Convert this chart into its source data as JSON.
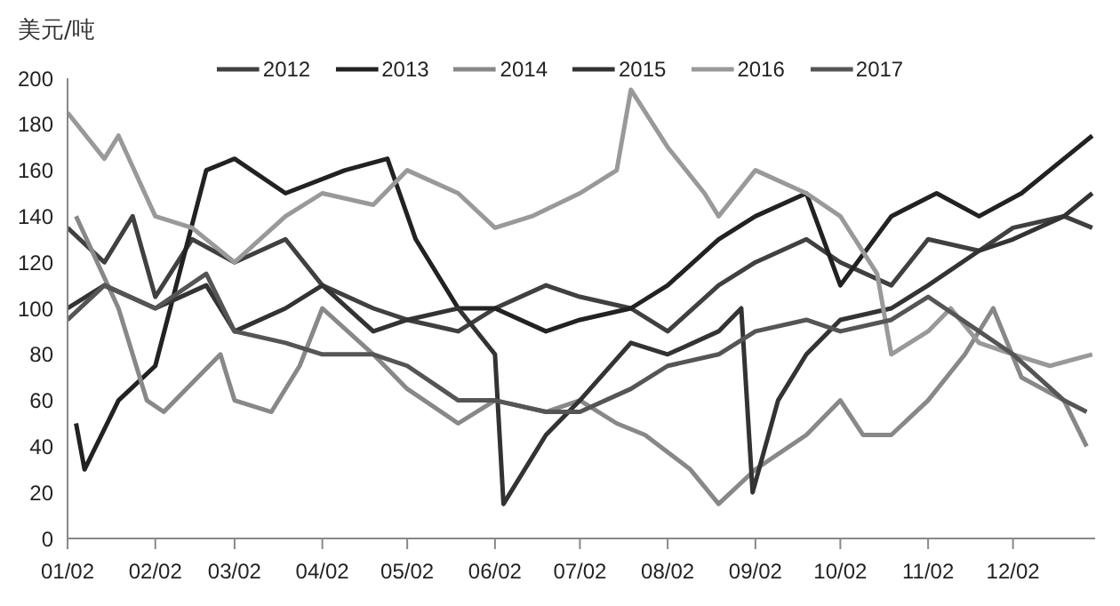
{
  "chart_data": {
    "type": "line",
    "ylabel": "美元/吨",
    "xlim": [
      "--01-02",
      "--12-31"
    ],
    "ylim": [
      0,
      200
    ],
    "yticks": [
      0,
      20,
      40,
      60,
      80,
      100,
      120,
      140,
      160,
      180,
      200
    ],
    "xticks": [
      {
        "value": "--01-02",
        "label": "01/02"
      },
      {
        "value": "--02-02",
        "label": "02/02"
      },
      {
        "value": "--03-02",
        "label": "03/02"
      },
      {
        "value": "--04-02",
        "label": "04/02"
      },
      {
        "value": "--05-02",
        "label": "05/02"
      },
      {
        "value": "--06-02",
        "label": "06/02"
      },
      {
        "value": "--07-02",
        "label": "07/02"
      },
      {
        "value": "--08-02",
        "label": "08/02"
      },
      {
        "value": "--09-02",
        "label": "09/02"
      },
      {
        "value": "--10-02",
        "label": "10/02"
      },
      {
        "value": "--11-02",
        "label": "11/02"
      },
      {
        "value": "--12-02",
        "label": "12/02"
      }
    ],
    "grid": false,
    "legend": "top",
    "marker": "none",
    "line_style": "solid",
    "series": [
      {
        "name": "2012",
        "color": "#404040",
        "x": [
          "--01-02",
          "--01-15",
          "--01-25",
          "--02-02",
          "--02-15",
          "--03-02",
          "--03-20",
          "--04-02",
          "--04-20",
          "--05-02",
          "--05-20",
          "--06-02",
          "--06-20",
          "--07-02",
          "--07-20",
          "--08-02",
          "--08-20",
          "--09-02",
          "--09-20",
          "--10-02",
          "--10-20",
          "--11-02",
          "--11-20",
          "--12-02",
          "--12-20",
          "--12-30"
        ],
        "values": [
          135,
          120,
          140,
          105,
          130,
          120,
          130,
          110,
          100,
          95,
          90,
          100,
          110,
          105,
          100,
          90,
          110,
          120,
          130,
          120,
          110,
          130,
          125,
          135,
          140,
          135
        ]
      },
      {
        "name": "2013",
        "color": "#222222",
        "x": [
          "--01-05",
          "--01-08",
          "--01-20",
          "--02-02",
          "--02-20",
          "--03-02",
          "--03-20",
          "--04-10",
          "--04-25",
          "--05-05",
          "--05-20",
          "--06-02",
          "--06-20",
          "--07-02",
          "--07-20",
          "--08-02",
          "--08-20",
          "--09-02",
          "--09-20",
          "--10-02",
          "--10-20",
          "--11-05",
          "--11-20",
          "--12-05",
          "--12-20",
          "--12-30"
        ],
        "values": [
          50,
          30,
          60,
          75,
          160,
          165,
          150,
          160,
          165,
          130,
          100,
          100,
          90,
          95,
          100,
          110,
          130,
          140,
          150,
          110,
          140,
          150,
          140,
          150,
          165,
          175
        ]
      },
      {
        "name": "2014",
        "color": "#888888",
        "x": [
          "--01-05",
          "--01-20",
          "--01-30",
          "--02-05",
          "--02-25",
          "--03-02",
          "--03-15",
          "--03-25",
          "--04-02",
          "--04-20",
          "--05-02",
          "--05-20",
          "--06-02",
          "--06-20",
          "--07-02",
          "--07-15",
          "--07-25",
          "--08-10",
          "--08-20",
          "--09-02",
          "--09-20",
          "--10-02",
          "--10-10",
          "--10-20",
          "--11-02",
          "--11-15",
          "--11-25",
          "--12-05",
          "--12-20",
          "--12-28"
        ],
        "values": [
          140,
          100,
          60,
          55,
          80,
          60,
          55,
          75,
          100,
          80,
          65,
          50,
          60,
          55,
          60,
          50,
          45,
          30,
          15,
          30,
          45,
          60,
          45,
          45,
          60,
          80,
          100,
          70,
          60,
          40
        ]
      },
      {
        "name": "2015",
        "color": "#333333",
        "x": [
          "--01-02",
          "--01-15",
          "--02-02",
          "--02-20",
          "--03-02",
          "--03-20",
          "--04-02",
          "--04-20",
          "--05-02",
          "--05-20",
          "--06-02",
          "--06-05",
          "--06-20",
          "--07-02",
          "--07-20",
          "--08-02",
          "--08-20",
          "--08-28",
          "--09-01",
          "--09-10",
          "--09-20",
          "--10-02",
          "--10-20",
          "--11-02",
          "--11-20",
          "--12-02",
          "--12-20",
          "--12-30"
        ],
        "values": [
          100,
          110,
          100,
          110,
          90,
          100,
          110,
          90,
          95,
          100,
          80,
          15,
          45,
          60,
          85,
          80,
          90,
          100,
          20,
          60,
          80,
          95,
          100,
          110,
          125,
          130,
          140,
          150
        ]
      },
      {
        "name": "2016",
        "color": "#999999",
        "x": [
          "--01-02",
          "--01-15",
          "--01-20",
          "--02-02",
          "--02-15",
          "--03-02",
          "--03-20",
          "--04-02",
          "--04-20",
          "--05-02",
          "--05-20",
          "--06-02",
          "--06-15",
          "--07-02",
          "--07-15",
          "--07-20",
          "--08-02",
          "--08-15",
          "--08-20",
          "--09-02",
          "--09-20",
          "--10-02",
          "--10-15",
          "--10-20",
          "--11-02",
          "--11-10",
          "--11-20",
          "--12-02",
          "--12-15",
          "--12-30"
        ],
        "values": [
          185,
          165,
          175,
          140,
          135,
          120,
          140,
          150,
          145,
          160,
          150,
          135,
          140,
          150,
          160,
          195,
          170,
          150,
          140,
          160,
          150,
          140,
          115,
          80,
          90,
          100,
          85,
          80,
          75,
          80
        ]
      },
      {
        "name": "2017",
        "color": "#555555",
        "x": [
          "--01-02",
          "--01-15",
          "--02-02",
          "--02-20",
          "--03-02",
          "--03-20",
          "--04-02",
          "--04-20",
          "--05-02",
          "--05-20",
          "--06-02",
          "--06-20",
          "--07-02",
          "--07-20",
          "--08-02",
          "--08-20",
          "--09-02",
          "--09-20",
          "--10-02",
          "--10-20",
          "--11-02",
          "--11-20",
          "--12-02",
          "--12-20",
          "--12-28"
        ],
        "values": [
          95,
          110,
          100,
          115,
          90,
          85,
          80,
          80,
          75,
          60,
          60,
          55,
          55,
          65,
          75,
          80,
          90,
          95,
          90,
          95,
          105,
          90,
          80,
          60,
          55
        ]
      }
    ]
  }
}
